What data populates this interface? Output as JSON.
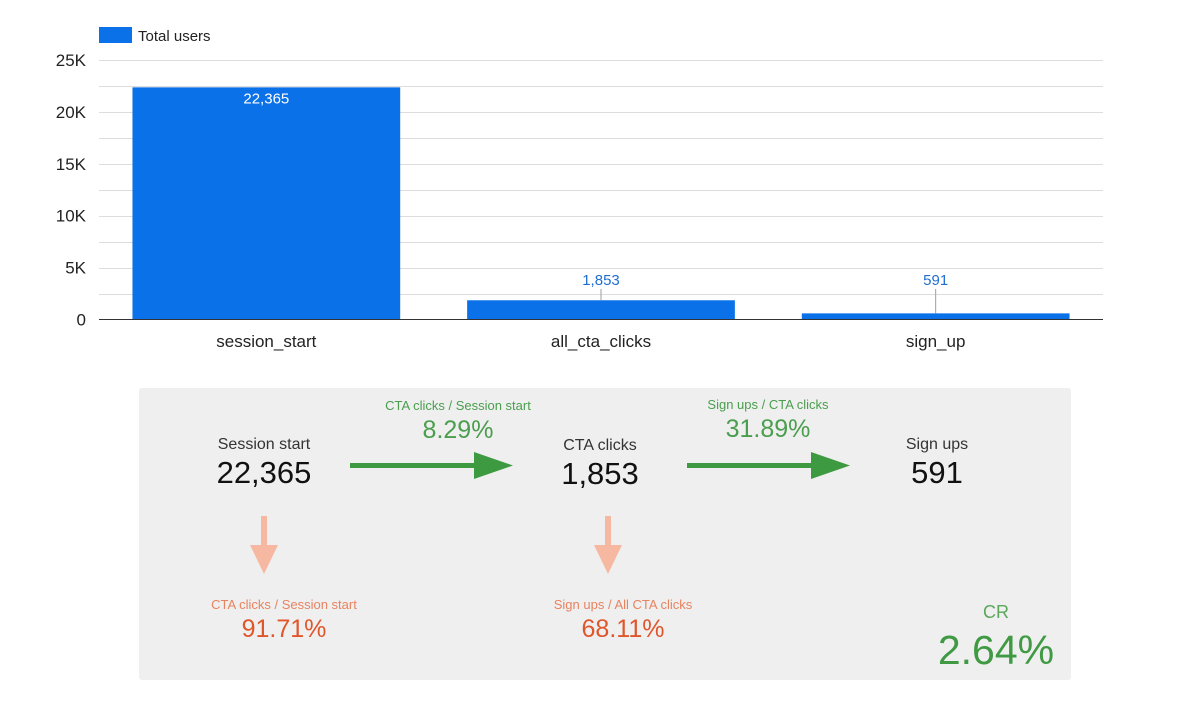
{
  "chart_data": {
    "type": "bar",
    "legend": {
      "label": "Total users",
      "position": "top-left"
    },
    "categories": [
      "session_start",
      "all_cta_clicks",
      "sign_up"
    ],
    "series": [
      {
        "name": "Total users",
        "values": [
          22365,
          1853,
          591
        ],
        "labels": [
          "22,365",
          "1,853",
          "591"
        ]
      }
    ],
    "ylim": [
      0,
      25000
    ],
    "yticks": [
      0,
      5000,
      10000,
      15000,
      20000,
      25000
    ],
    "ytick_labels": [
      "0",
      "5K",
      "10K",
      "15K",
      "20K",
      "25K"
    ],
    "grid": true,
    "colors": {
      "bar": "#0b71e8",
      "label_inside": "#ffffff",
      "label_outside": "#1f6fd1"
    }
  },
  "funnel": {
    "session_start": {
      "label": "Session start",
      "value": "22,365"
    },
    "cta_clicks": {
      "label": "CTA clicks",
      "value": "1,853"
    },
    "sign_ups": {
      "label": "Sign ups",
      "value": "591"
    },
    "ratio_cta_session": {
      "label": "CTA clicks / Session start",
      "value": "8.29%"
    },
    "ratio_signup_cta": {
      "label": "Sign ups / CTA clicks",
      "value": "31.89%"
    },
    "drop_cta_session": {
      "label": "CTA clicks / Session start",
      "value": "91.71%"
    },
    "drop_signup_cta": {
      "label": "Sign ups / All CTA clicks",
      "value": "68.11%"
    },
    "cr": {
      "label": "CR",
      "value": "2.64%"
    },
    "colors": {
      "green_arrow": "#3e9a41",
      "salmon_arrow": "#f6b8a0",
      "panel": "#efefef"
    }
  }
}
